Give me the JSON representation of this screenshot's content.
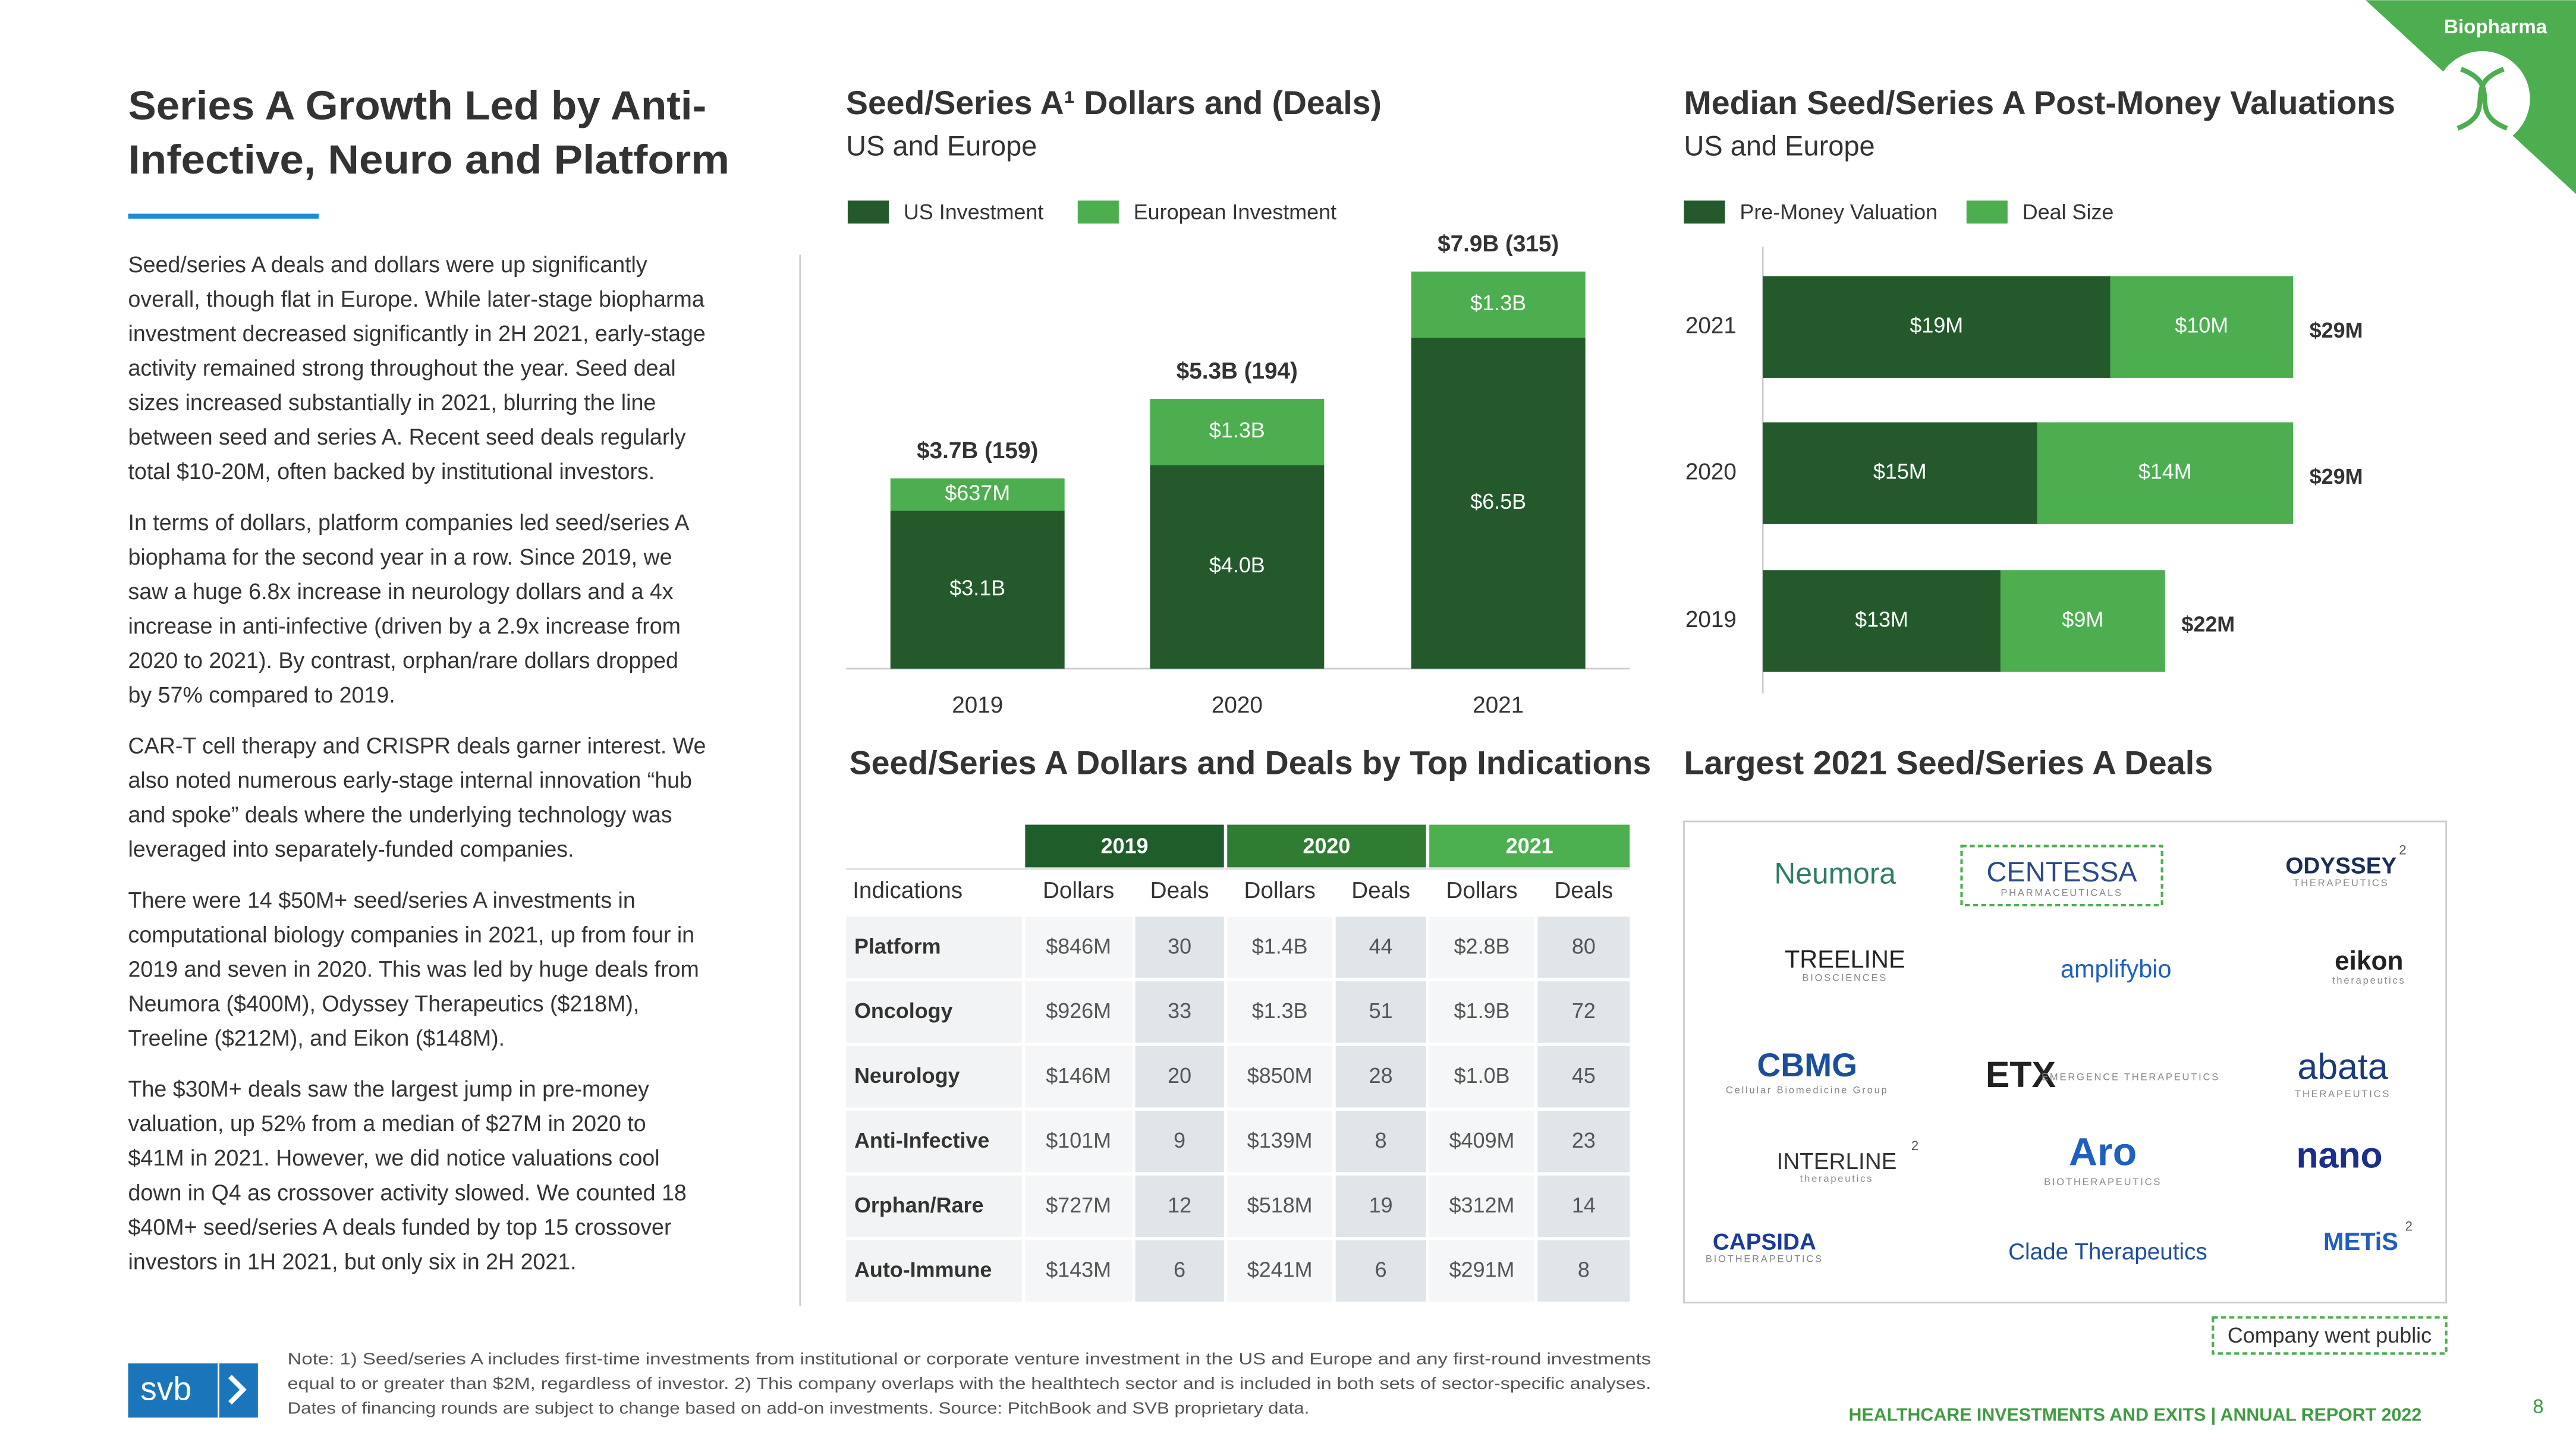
{
  "section_tag": "Biopharma",
  "title_lines": [
    "Series A Growth Led by Anti-",
    "Infective, Neuro and Platform"
  ],
  "paragraphs": [
    [
      "Seed/series A deals and dollars were up significantly",
      "overall, though flat in Europe. While later-stage biopharma",
      "investment decreased significantly in 2H 2021, early-stage",
      "activity remained strong throughout the year. Seed deal",
      "sizes increased substantially in 2021, blurring the line",
      "between seed and series A. Recent seed deals regularly",
      "total $10-20M, often backed by institutional investors."
    ],
    [
      "In terms of dollars, platform companies led seed/series A",
      "biophama for the second year in a row. Since 2019, we",
      "saw a huge 6.8x increase in neurology dollars and a 4x",
      "increase in anti-infective (driven by a 2.9x increase from",
      "2020 to 2021). By contrast, orphan/rare dollars dropped",
      "by 57% compared to 2019."
    ],
    [
      "CAR-T cell therapy and CRISPR deals garner interest. We",
      "also noted numerous early-stage internal innovation “hub",
      "and spoke” deals where the underlying technology was",
      "leveraged into separately-funded companies."
    ],
    [
      "There were 14 $50M+ seed/series A investments in",
      "computational biology companies in 2021, up from four in",
      "2019 and seven in 2020. This was led by huge deals from",
      "Neumora ($400M), Odyssey Therapeutics ($218M),",
      "Treeline ($212M), and Eikon ($148M)."
    ],
    [
      "The $30M+ deals saw the largest jump in pre-money",
      "valuation, up 52%  from a median of $27M in 2020 to",
      "$41M in 2021. However, we did notice valuations cool",
      "down in Q4 as crossover activity slowed. We counted 18",
      "$40M+ seed/series A deals funded by top 15 crossover",
      "investors in 1H 2021, but only six in 2H 2021."
    ]
  ],
  "chart_data": [
    {
      "type": "stacked_bar",
      "title": "Seed/Series A¹ Dollars and (Deals)",
      "subtitle": "US and Europe",
      "categories": [
        "2019",
        "2020",
        "2021"
      ],
      "series": [
        {
          "name": "US Investment",
          "color": "#245a2b",
          "values": [
            3.1,
            4.0,
            6.5
          ],
          "value_labels": [
            "$3.1B",
            "$4.0B",
            "$6.5B"
          ]
        },
        {
          "name": "European Investment",
          "color": "#4cae4f",
          "values": [
            0.637,
            1.3,
            1.3
          ],
          "value_labels": [
            "$637M",
            "$1.3B",
            "$1.3B"
          ]
        }
      ],
      "annotations": [
        "$3.7B (159)",
        "$5.3B (194)",
        "$7.9B (315)"
      ]
    },
    {
      "type": "stacked_hbar",
      "title": "Median Seed/Series A Post-Money Valuations",
      "subtitle": "US and Europe",
      "categories": [
        "2021",
        "2020",
        "2019"
      ],
      "series": [
        {
          "name": "Pre-Money Valuation",
          "color": "#245a2b",
          "values": [
            19,
            15,
            13
          ],
          "value_labels": [
            "$19M",
            "$15M",
            "$13M"
          ]
        },
        {
          "name": "Deal Size",
          "color": "#4cae4f",
          "values": [
            10,
            14,
            9
          ],
          "value_labels": [
            "$10M",
            "$14M",
            "$9M"
          ]
        }
      ],
      "annotations": [
        "$29M",
        "$29M",
        "$22M"
      ]
    }
  ],
  "table": {
    "title": "Seed/Series A Dollars and Deals by Top Indications",
    "years": [
      "2019",
      "2020",
      "2021"
    ],
    "columns": [
      "Indications",
      "Dollars",
      "Deals",
      "Dollars",
      "Deals",
      "Dollars",
      "Deals"
    ],
    "rows": [
      [
        "Platform",
        "$846M",
        30,
        "$1.4B",
        44,
        "$2.8B",
        80
      ],
      [
        "Oncology",
        "$926M",
        33,
        "$1.3B",
        51,
        "$1.9B",
        72
      ],
      [
        "Neurology",
        "$146M",
        20,
        "$850M",
        28,
        "$1.0B",
        45
      ],
      [
        "Anti-Infective",
        "$101M",
        9,
        "$139M",
        8,
        "$409M",
        23
      ],
      [
        "Orphan/Rare",
        "$727M",
        12,
        "$518M",
        19,
        "$312M",
        14
      ],
      [
        "Auto-Immune",
        "$143M",
        6,
        "$241M",
        6,
        "$291M",
        8
      ]
    ]
  },
  "deals": {
    "title": "Largest 2021 Seed/Series A Deals",
    "logos": [
      {
        "name": "Neumora"
      },
      {
        "name": "CENTESSA",
        "sub": "PHARMACEUTICALS"
      },
      {
        "name": "ODYSSEY",
        "sub": "THERAPEUTICS",
        "footnote": "2"
      },
      {
        "name": "TREELINE",
        "sub": "BIOSCIENCES"
      },
      {
        "name": "amplifybio"
      },
      {
        "name": "eikon",
        "sub": "therapeutics"
      },
      {
        "name": "CBMG",
        "sub": "Cellular Biomedicine Group"
      },
      {
        "name": "ETX",
        "sub": "EMERGENCE THERAPEUTICS"
      },
      {
        "name": "abata",
        "sub": "THERAPEUTICS"
      },
      {
        "name": "INTERLINE",
        "sub": "therapeutics",
        "footnote": "2"
      },
      {
        "name": "Aro",
        "sub": "BIOTHERAPEUTICS"
      },
      {
        "name": "nano"
      },
      {
        "name": "CAPSIDA",
        "sub": "BIOTHERAPEUTICS"
      },
      {
        "name": "Clade Therapeutics"
      },
      {
        "name": "METiS",
        "footnote": "2"
      }
    ],
    "legend": "Company went public"
  },
  "note_lines": [
    "Note: 1) Seed/series A includes first-time investments from institutional or corporate venture investment in the US and Europe and any first-round investments",
    "equal to or greater than $2M, regardless of investor. 2) This company overlaps with the healthtech sector and is included in both sets of sector-specific analyses.",
    "Dates of financing rounds are subject to change based on add-on investments. Source: PitchBook and SVB proprietary data."
  ],
  "footer": {
    "logo": "svb",
    "report": "HEALTHCARE INVESTMENTS AND EXITS | ANNUAL REPORT 2022",
    "page": "8"
  }
}
